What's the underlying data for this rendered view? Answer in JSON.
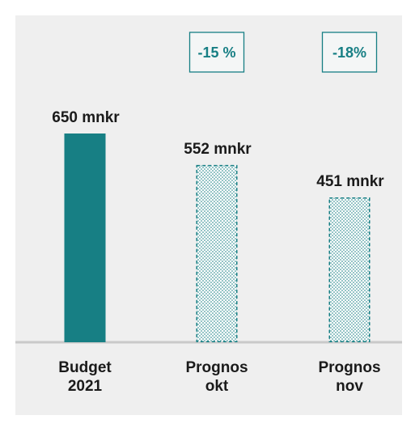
{
  "chart_data": {
    "type": "bar",
    "categories": [
      [
        "Budget",
        "2021"
      ],
      [
        "Prognos",
        "okt"
      ],
      [
        "Prognos",
        "nov"
      ]
    ],
    "values": [
      650,
      552,
      451
    ],
    "value_labels": [
      "650  mnkr",
      "552  mnkr",
      "451  mnkr"
    ],
    "bar_styles": [
      "solid",
      "dotted",
      "dotted"
    ],
    "change_labels": [
      "",
      "-15 %",
      "-18%"
    ],
    "ylim": [
      0,
      650
    ],
    "grid": false,
    "legend": "none",
    "colors": {
      "bar": "#177f84",
      "bar_dotted_fill": "#ffffff",
      "baseline": "#c9c9c9",
      "background": "#efefef"
    }
  }
}
